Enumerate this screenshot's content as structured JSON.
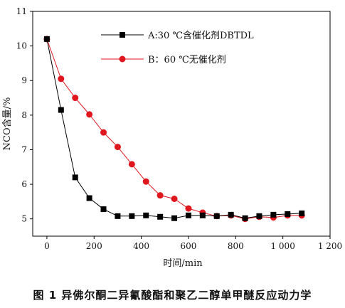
{
  "caption": "图 1 异佛尔酮二异氰酸酯和聚乙二醇单甲醚反应动力学",
  "chart_data": {
    "type": "line",
    "xlabel": "时间/min",
    "ylabel": "NCO含量/%",
    "xlim": [
      -60,
      1200
    ],
    "ylim": [
      4.5,
      11
    ],
    "xticks": [
      0,
      200,
      400,
      600,
      800,
      1000,
      1200
    ],
    "xtick_labels": [
      "0",
      "200",
      "400",
      "600",
      "800",
      "1 000",
      "1 200"
    ],
    "yticks": [
      5,
      6,
      7,
      8,
      9,
      10,
      11
    ],
    "ytick_labels": [
      "5",
      "6",
      "7",
      "8",
      "9",
      "10",
      "11"
    ],
    "grid": false,
    "legend_position": "top-right",
    "series": [
      {
        "name": "A:30 ℃含催化剂DBTDL",
        "color": "#000000",
        "marker": "square",
        "x": [
          0,
          60,
          120,
          180,
          240,
          300,
          360,
          420,
          480,
          540,
          600,
          660,
          720,
          780,
          840,
          900,
          960,
          1020,
          1080
        ],
        "y": [
          10.2,
          8.15,
          6.2,
          5.6,
          5.28,
          5.08,
          5.08,
          5.1,
          5.06,
          5.02,
          5.1,
          5.1,
          5.08,
          5.12,
          5.02,
          5.08,
          5.12,
          5.14,
          5.16
        ]
      },
      {
        "name": "B：60 ℃无催化剂",
        "color": "#e0161e",
        "marker": "circle",
        "x": [
          0,
          60,
          120,
          180,
          240,
          300,
          360,
          420,
          480,
          540,
          600,
          660,
          720,
          780,
          840,
          900,
          960,
          1020,
          1080
        ],
        "y": [
          10.2,
          9.05,
          8.5,
          8.02,
          7.5,
          7.08,
          6.58,
          6.08,
          5.68,
          5.58,
          5.3,
          5.18,
          5.08,
          5.1,
          5.0,
          5.06,
          5.04,
          5.1,
          5.1
        ]
      }
    ]
  }
}
